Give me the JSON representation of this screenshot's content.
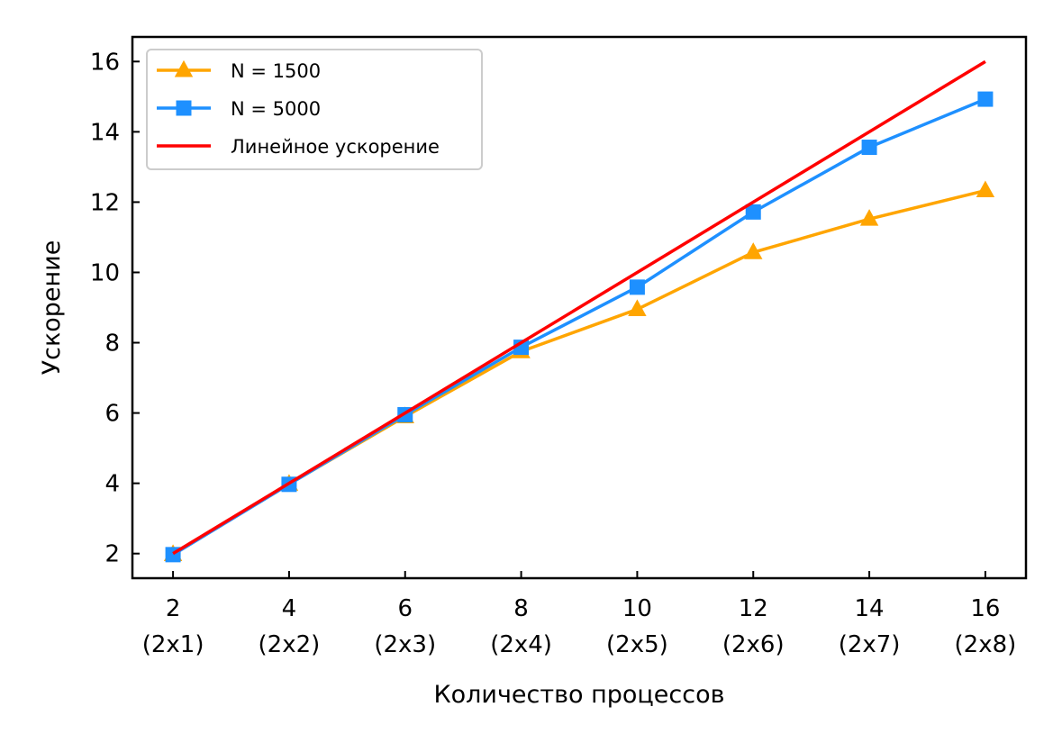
{
  "chart_data": {
    "type": "line",
    "title": "",
    "xlabel": "Количество процессов",
    "ylabel": "Ускорение",
    "x": [
      2,
      4,
      6,
      8,
      10,
      12,
      14,
      16
    ],
    "x_tick_labels": [
      {
        "value": "2",
        "sub": "(2x1)"
      },
      {
        "value": "4",
        "sub": "(2x2)"
      },
      {
        "value": "6",
        "sub": "(2x3)"
      },
      {
        "value": "8",
        "sub": "(2x4)"
      },
      {
        "value": "10",
        "sub": "(2x5)"
      },
      {
        "value": "12",
        "sub": "(2x6)"
      },
      {
        "value": "14",
        "sub": "(2x7)"
      },
      {
        "value": "16",
        "sub": "(2x8)"
      }
    ],
    "y_ticks": [
      2,
      4,
      6,
      8,
      10,
      12,
      14,
      16
    ],
    "xlim": [
      1.3,
      16.7
    ],
    "ylim": [
      1.3,
      16.7
    ],
    "grid": false,
    "legend_position": "top-left",
    "series": [
      {
        "name": "N = 1500",
        "color": "#FFA500",
        "marker": "triangle",
        "values": [
          1.98,
          3.98,
          5.9,
          7.75,
          8.95,
          10.57,
          11.52,
          12.33
        ]
      },
      {
        "name": "N = 5000",
        "color": "#1E90FF",
        "marker": "square",
        "values": [
          1.97,
          3.97,
          5.95,
          7.87,
          9.58,
          11.72,
          13.56,
          14.93
        ]
      },
      {
        "name": "Линейное ускорение",
        "color": "#FF0000",
        "marker": "none",
        "values": [
          2,
          4,
          6,
          8,
          10,
          12,
          14,
          16
        ]
      }
    ]
  }
}
